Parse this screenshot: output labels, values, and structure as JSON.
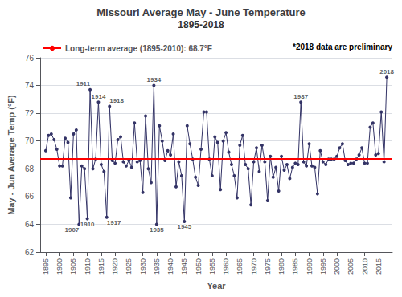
{
  "chart_data": {
    "type": "line",
    "title": "Missouri Average May - June Temperature",
    "subtitle": "1895-2018",
    "xlabel": "Year",
    "ylabel": "May - Jun Average Temp (°F)",
    "color": "#333366",
    "marker": "circle",
    "grid": true,
    "xlim": [
      1893,
      2020
    ],
    "xticks": [
      1895,
      1900,
      1905,
      1910,
      1915,
      1920,
      1925,
      1930,
      1935,
      1940,
      1945,
      1950,
      1955,
      1960,
      1965,
      1970,
      1975,
      1980,
      1985,
      1990,
      1995,
      2000,
      2005,
      2010,
      2015
    ],
    "ylim": [
      62.0,
      76.0
    ],
    "yticks": [
      62.0,
      64.0,
      66.0,
      68.0,
      70.0,
      72.0,
      74.0,
      76.0
    ],
    "reference_line": {
      "value": 68.7,
      "color": "#ff0000",
      "label": "Long-term average (1895-2010): 68.7°F"
    },
    "note": "*2018 data are preliminary",
    "annotations": [
      {
        "text": "1907",
        "x": 1907,
        "y": 64.0
      },
      {
        "text": "1910",
        "x": 1910,
        "y": 64.4
      },
      {
        "text": "1911",
        "x": 1911,
        "y": 73.7
      },
      {
        "text": "1914",
        "x": 1914,
        "y": 72.8
      },
      {
        "text": "1917",
        "x": 1917,
        "y": 64.5
      },
      {
        "text": "1918",
        "x": 1918,
        "y": 72.5
      },
      {
        "text": "1934",
        "x": 1934,
        "y": 74.0
      },
      {
        "text": "1935",
        "x": 1935,
        "y": 64.0
      },
      {
        "text": "1945",
        "x": 1945,
        "y": 64.2
      },
      {
        "text": "1987",
        "x": 1987,
        "y": 72.8
      },
      {
        "text": "2018",
        "x": 2018,
        "y": 74.6
      }
    ],
    "x": [
      1895,
      1896,
      1897,
      1898,
      1899,
      1900,
      1901,
      1902,
      1903,
      1904,
      1905,
      1906,
      1907,
      1908,
      1909,
      1910,
      1911,
      1912,
      1913,
      1914,
      1915,
      1916,
      1917,
      1918,
      1919,
      1920,
      1921,
      1922,
      1923,
      1924,
      1925,
      1926,
      1927,
      1928,
      1929,
      1930,
      1931,
      1932,
      1933,
      1934,
      1935,
      1936,
      1937,
      1938,
      1939,
      1940,
      1941,
      1942,
      1943,
      1944,
      1945,
      1946,
      1947,
      1948,
      1949,
      1950,
      1951,
      1952,
      1953,
      1954,
      1955,
      1956,
      1957,
      1958,
      1959,
      1960,
      1961,
      1962,
      1963,
      1964,
      1965,
      1966,
      1967,
      1968,
      1969,
      1970,
      1971,
      1972,
      1973,
      1974,
      1975,
      1976,
      1977,
      1978,
      1979,
      1980,
      1981,
      1982,
      1983,
      1984,
      1985,
      1986,
      1987,
      1988,
      1989,
      1990,
      1991,
      1992,
      1993,
      1994,
      1995,
      1996,
      1997,
      1998,
      1999,
      2000,
      2001,
      2002,
      2003,
      2004,
      2005,
      2006,
      2007,
      2008,
      2009,
      2010,
      2011,
      2012,
      2013,
      2014,
      2015,
      2016,
      2017,
      2018
    ],
    "values": [
      69.3,
      70.4,
      70.5,
      70.1,
      69.4,
      68.2,
      68.2,
      70.2,
      69.9,
      65.9,
      70.5,
      70.8,
      64.0,
      68.2,
      68.0,
      64.4,
      73.7,
      68.0,
      68.7,
      72.8,
      68.3,
      67.8,
      64.5,
      72.5,
      68.6,
      68.4,
      70.1,
      70.3,
      68.5,
      68.2,
      68.6,
      68.1,
      71.3,
      68.5,
      68.6,
      66.3,
      71.8,
      68.0,
      67.0,
      74.0,
      64.0,
      71.1,
      70.0,
      68.6,
      69.3,
      69.0,
      70.5,
      66.7,
      68.5,
      67.5,
      64.2,
      71.1,
      69.8,
      68.7,
      67.4,
      66.8,
      69.4,
      72.1,
      72.1,
      68.7,
      67.5,
      70.3,
      69.9,
      66.5,
      70.0,
      70.6,
      69.2,
      68.3,
      67.5,
      65.9,
      69.7,
      70.4,
      68.3,
      68.0,
      65.4,
      68.5,
      69.5,
      67.8,
      69.7,
      68.5,
      65.7,
      68.9,
      67.4,
      68.1,
      66.4,
      68.9,
      67.9,
      68.3,
      67.3,
      68.1,
      68.4,
      68.3,
      72.8,
      68.5,
      68.2,
      69.8,
      68.2,
      68.1,
      66.2,
      69.3,
      68.5,
      68.3,
      68.7,
      68.7,
      68.7,
      68.9,
      69.5,
      69.8,
      68.6,
      68.3,
      68.4,
      68.4,
      68.7,
      69.0,
      69.5,
      68.4,
      68.4,
      71.0,
      71.3,
      69.0,
      69.1,
      72.1,
      68.5,
      74.6
    ]
  }
}
